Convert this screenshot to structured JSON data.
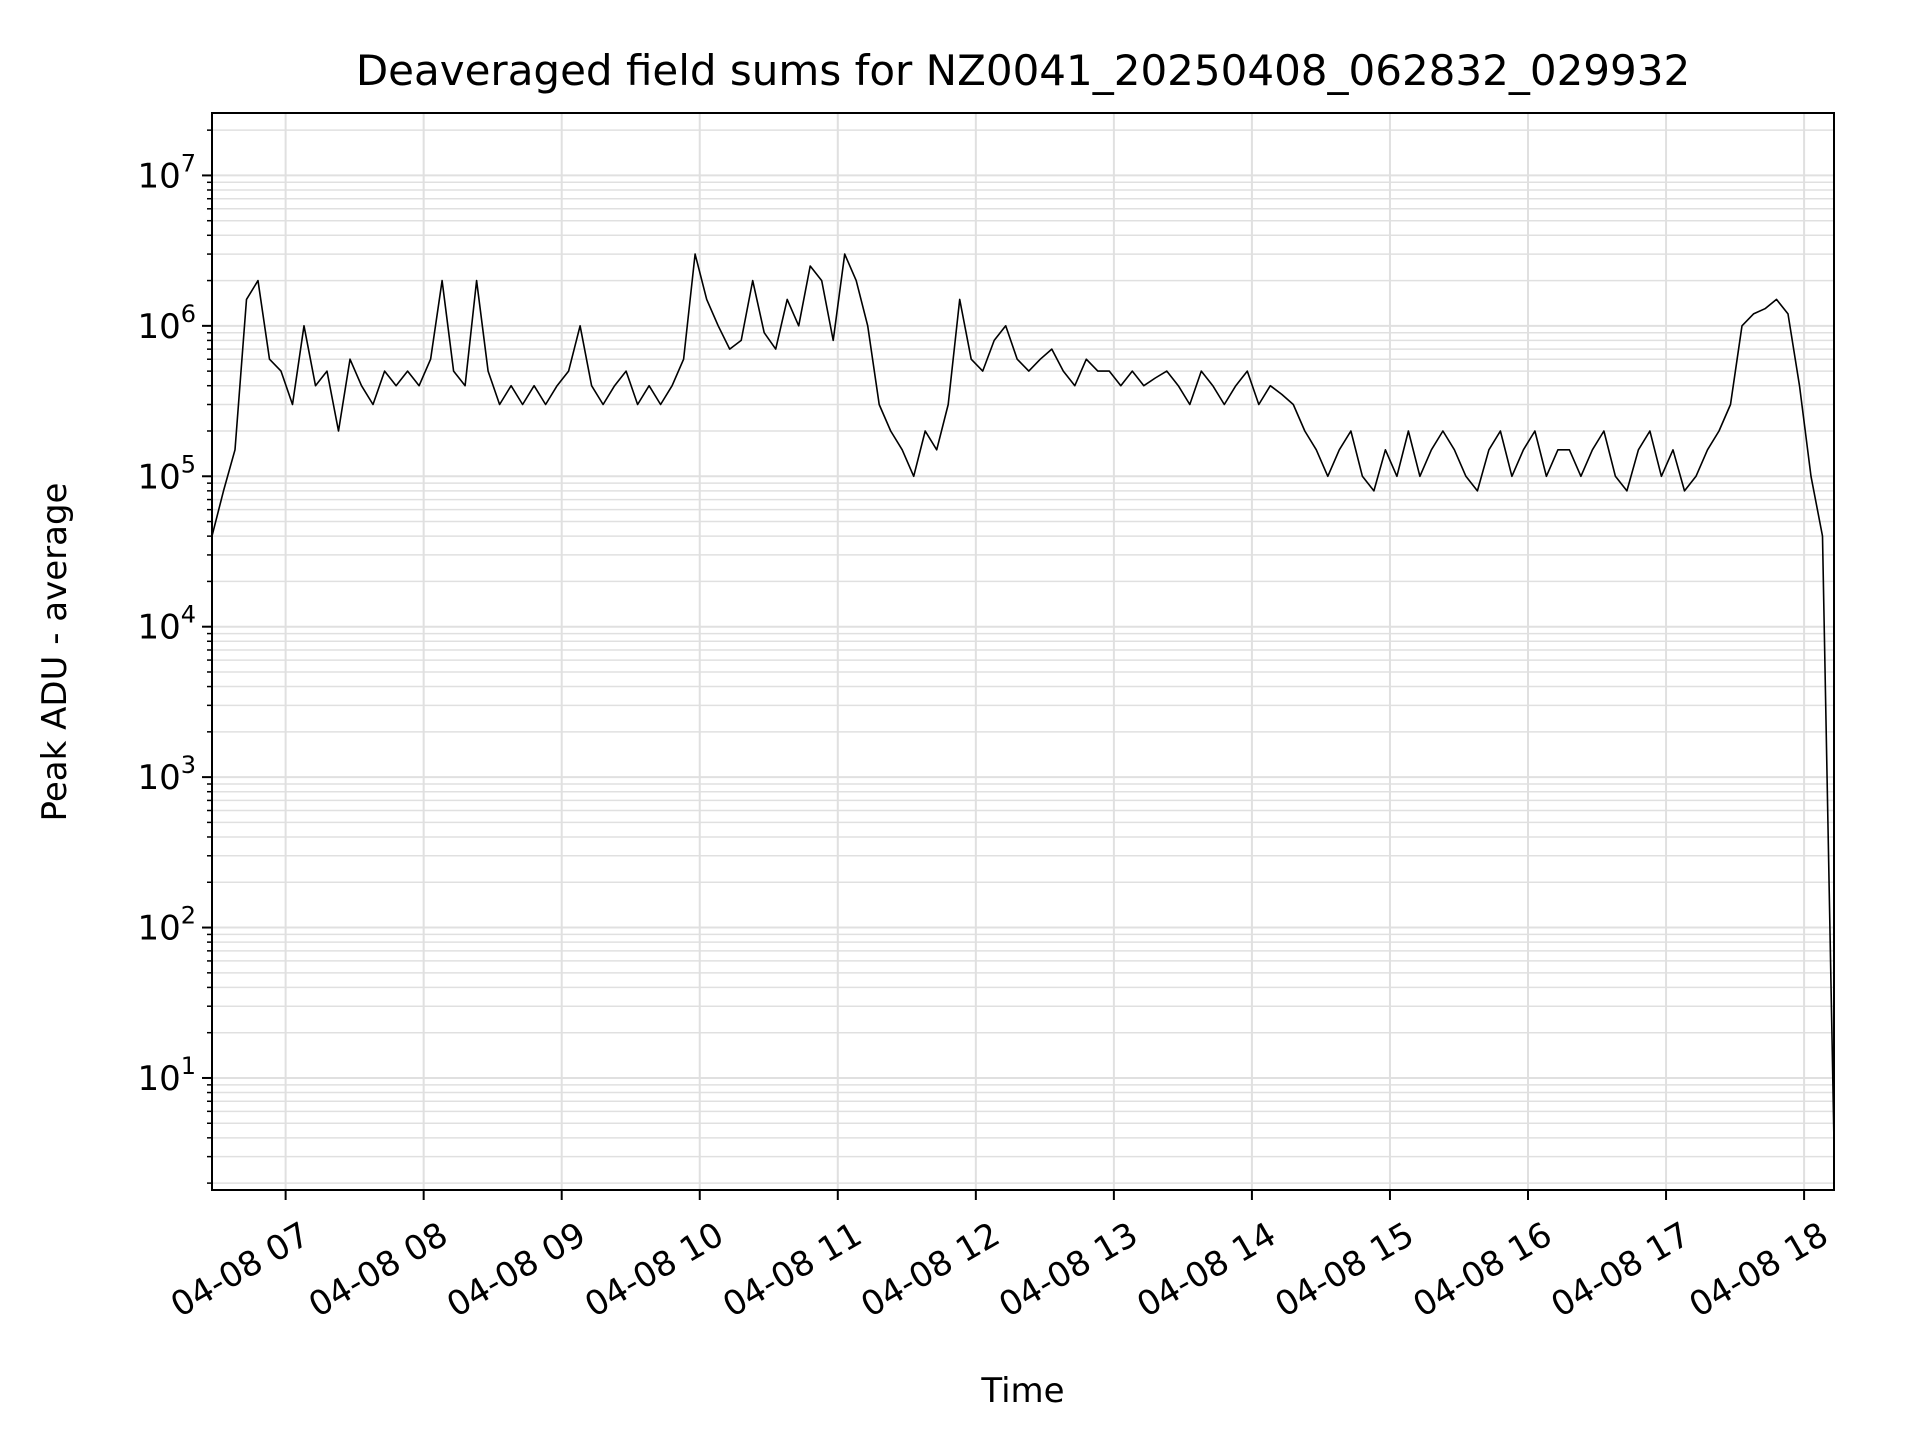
{
  "chart_data": {
    "type": "line",
    "title": "Deaveraged field sums for NZ0041_20250408_062832_029932",
    "xlabel": "Time",
    "ylabel": "Peak ADU - average",
    "x_tick_labels": [
      "04-08 07",
      "04-08 08",
      "04-08 09",
      "04-08 10",
      "04-08 11",
      "04-08 12",
      "04-08 13",
      "04-08 14",
      "04-08 15",
      "04-08 16",
      "04-08 17",
      "04-08 18"
    ],
    "xlim": [
      "2025-04-08 06:28",
      "2025-04-08 18:13"
    ],
    "yscale": "log",
    "ylim": [
      1.8,
      26000000
    ],
    "y_ticks": [
      10,
      100,
      1000,
      10000,
      100000,
      1000000,
      10000000
    ],
    "y_tick_labels": [
      "10^1",
      "10^2",
      "10^3",
      "10^4",
      "10^5",
      "10^6",
      "10^7"
    ],
    "grid": true,
    "line_color": "#000000",
    "grid_color": "#e0e0e0",
    "series": [
      {
        "x": [
          "06:28",
          "06:33",
          "06:38",
          "06:43",
          "06:48",
          "06:53",
          "06:58",
          "07:03",
          "07:08",
          "07:13",
          "07:18",
          "07:23",
          "07:28",
          "07:33",
          "07:38",
          "07:43",
          "07:48",
          "07:53",
          "07:58",
          "08:03",
          "08:08",
          "08:13",
          "08:18",
          "08:23",
          "08:28",
          "08:33",
          "08:38",
          "08:43",
          "08:48",
          "08:53",
          "08:58",
          "09:03",
          "09:08",
          "09:13",
          "09:18",
          "09:23",
          "09:28",
          "09:33",
          "09:38",
          "09:43",
          "09:48",
          "09:53",
          "09:58",
          "10:03",
          "10:08",
          "10:13",
          "10:18",
          "10:23",
          "10:28",
          "10:33",
          "10:38",
          "10:43",
          "10:48",
          "10:53",
          "10:58",
          "11:03",
          "11:08",
          "11:13",
          "11:18",
          "11:23",
          "11:28",
          "11:33",
          "11:38",
          "11:43",
          "11:48",
          "11:53",
          "11:58",
          "12:03",
          "12:08",
          "12:13",
          "12:18",
          "12:23",
          "12:28",
          "12:33",
          "12:38",
          "12:43",
          "12:48",
          "12:53",
          "12:58",
          "13:03",
          "13:08",
          "13:13",
          "13:18",
          "13:23",
          "13:28",
          "13:33",
          "13:38",
          "13:43",
          "13:48",
          "13:53",
          "13:58",
          "14:03",
          "14:08",
          "14:13",
          "14:18",
          "14:23",
          "14:28",
          "14:33",
          "14:38",
          "14:43",
          "14:48",
          "14:53",
          "14:58",
          "15:03",
          "15:08",
          "15:13",
          "15:18",
          "15:23",
          "15:28",
          "15:33",
          "15:38",
          "15:43",
          "15:48",
          "15:53",
          "15:58",
          "16:03",
          "16:08",
          "16:13",
          "16:18",
          "16:23",
          "16:28",
          "16:33",
          "16:38",
          "16:43",
          "16:48",
          "16:53",
          "16:58",
          "17:03",
          "17:08",
          "17:13",
          "17:18",
          "17:23",
          "17:28",
          "17:33",
          "17:38",
          "17:43",
          "17:48",
          "17:53",
          "17:58",
          "18:03",
          "18:08",
          "18:13"
        ],
        "y": [
          40000,
          80000,
          150000,
          1500000,
          2000000,
          600000,
          500000,
          300000,
          1000000,
          400000,
          500000,
          200000,
          600000,
          400000,
          300000,
          500000,
          400000,
          500000,
          400000,
          600000,
          2000000,
          500000,
          400000,
          2000000,
          500000,
          300000,
          400000,
          300000,
          400000,
          300000,
          400000,
          500000,
          1000000,
          400000,
          300000,
          400000,
          500000,
          300000,
          400000,
          300000,
          400000,
          600000,
          3000000,
          1500000,
          1000000,
          700000,
          800000,
          2000000,
          900000,
          700000,
          1500000,
          1000000,
          2500000,
          2000000,
          800000,
          3000000,
          2000000,
          1000000,
          300000,
          200000,
          150000,
          100000,
          200000,
          150000,
          300000,
          1500000,
          600000,
          500000,
          800000,
          1000000,
          600000,
          500000,
          600000,
          700000,
          500000,
          400000,
          600000,
          500000,
          500000,
          400000,
          500000,
          400000,
          450000,
          500000,
          400000,
          300000,
          500000,
          400000,
          300000,
          400000,
          500000,
          300000,
          400000,
          350000,
          300000,
          200000,
          150000,
          100000,
          150000,
          200000,
          100000,
          80000,
          150000,
          100000,
          200000,
          100000,
          150000,
          200000,
          150000,
          100000,
          80000,
          150000,
          200000,
          100000,
          150000,
          200000,
          100000,
          150000,
          150000,
          100000,
          150000,
          200000,
          100000,
          80000,
          150000,
          200000,
          100000,
          150000,
          80000,
          100000,
          150000,
          200000,
          300000,
          1000000,
          1200000,
          1300000,
          1500000,
          1200000,
          400000,
          100000,
          40000,
          3.7
        ]
      }
    ]
  }
}
